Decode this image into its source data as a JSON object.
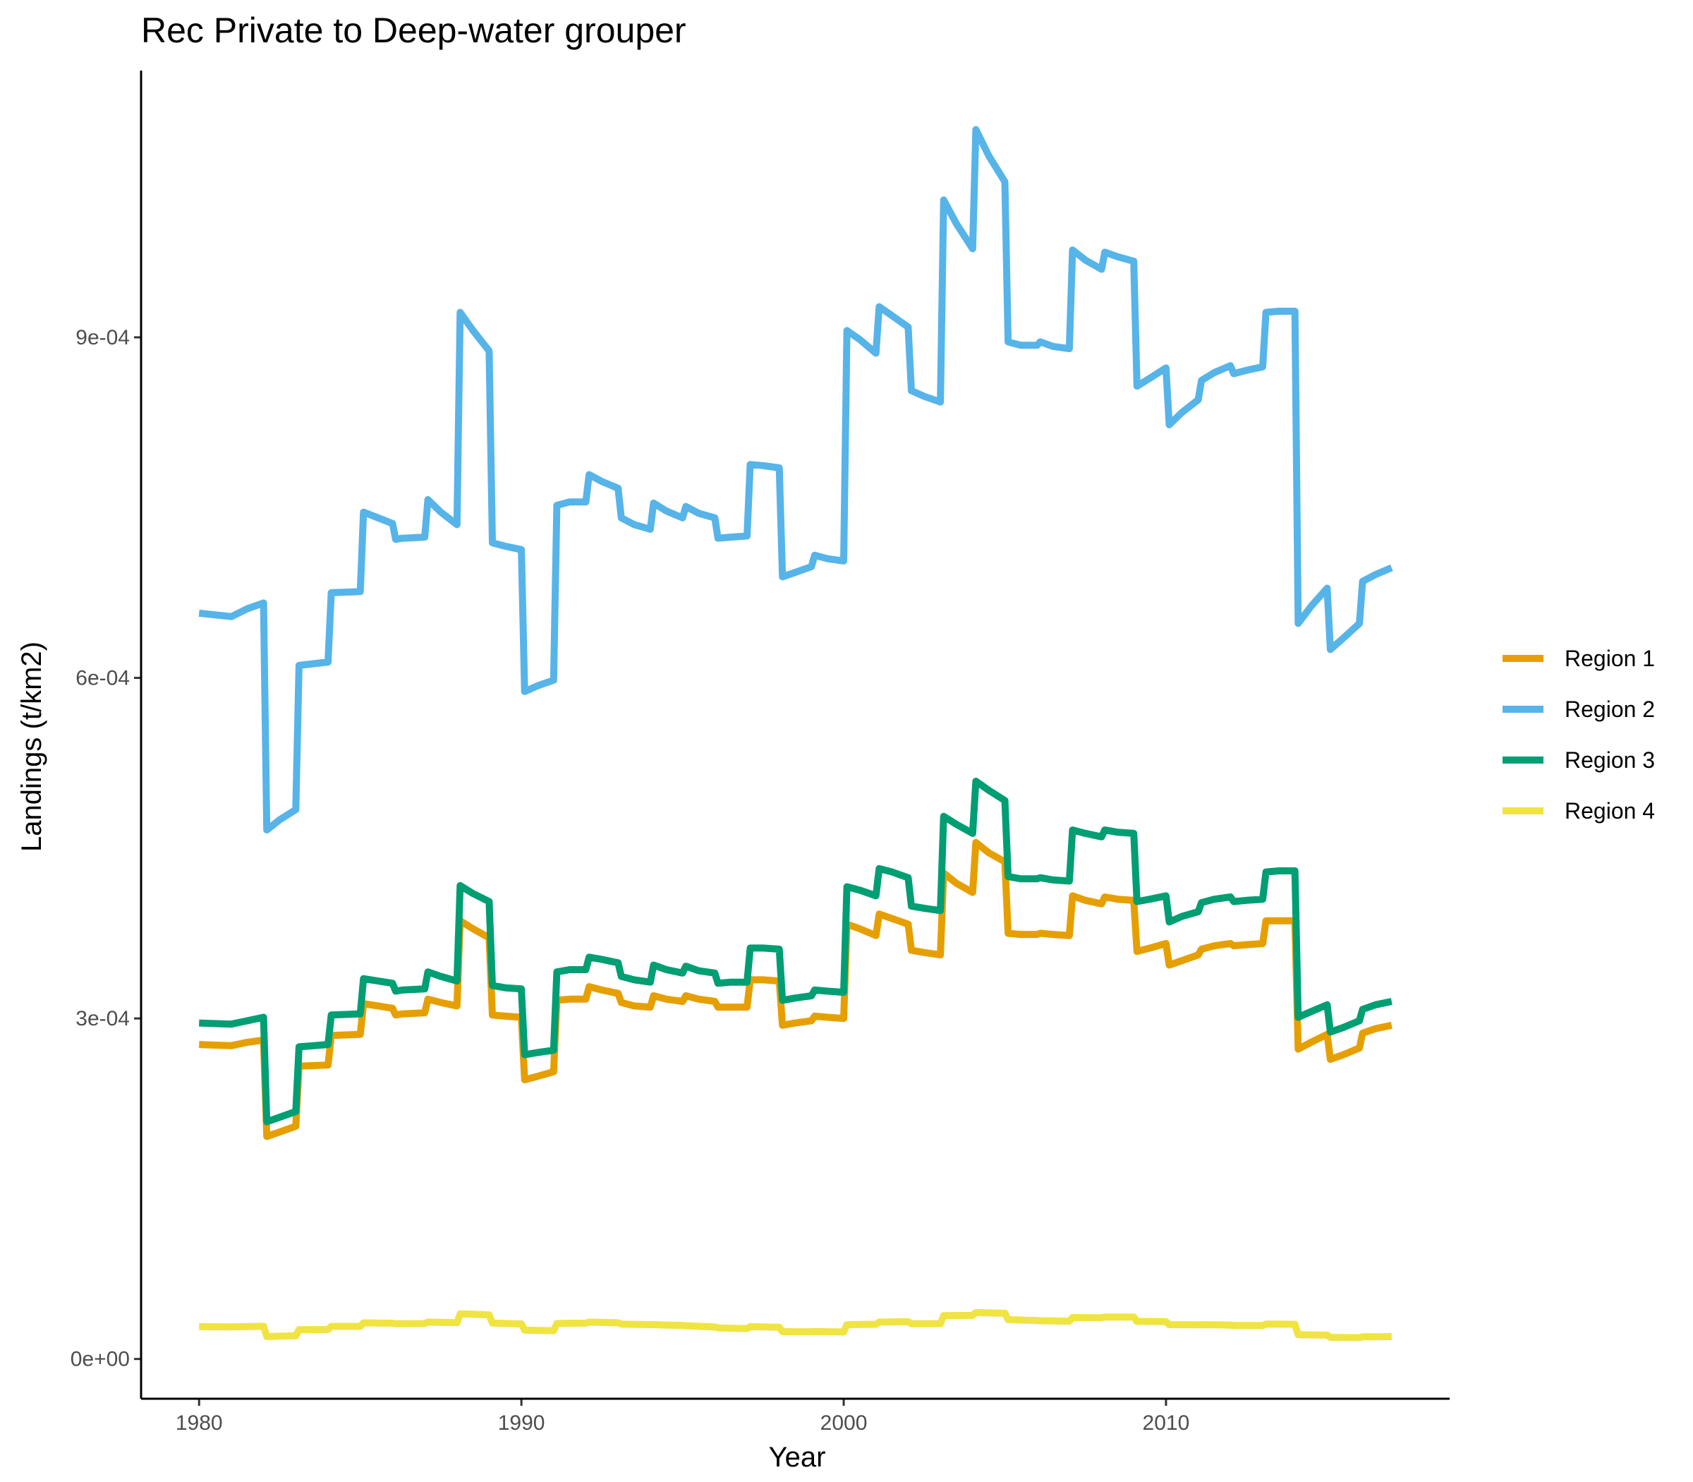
{
  "chart_data": {
    "type": "line",
    "title": "Rec Private to Deep-water grouper",
    "xlabel": "Year",
    "ylabel": "Landings (t/km2)",
    "xlim": [
      1978.2,
      2018.8
    ],
    "ylim": [
      -3.5e-05,
      0.001135
    ],
    "x_ticks": [
      1980,
      1990,
      2000,
      2010
    ],
    "x_tick_labels": [
      "1980",
      "1990",
      "2000",
      "2010"
    ],
    "y_ticks": [
      0,
      0.0003,
      0.0006,
      0.0009
    ],
    "y_tick_labels": [
      "0e+00",
      "3e-04",
      "6e-04",
      "9e-04"
    ],
    "legend_position": "right",
    "x": [
      1980.0,
      1981.0,
      1981.5,
      1982.0,
      1982.1,
      1982.5,
      1983.0,
      1983.1,
      1984.0,
      1984.1,
      1985.0,
      1985.1,
      1986.0,
      1986.1,
      1986.3,
      1987.0,
      1987.1,
      1987.5,
      1988.0,
      1988.1,
      1988.5,
      1989.0,
      1989.1,
      1989.5,
      1990.0,
      1990.1,
      1990.5,
      1991.0,
      1991.1,
      1991.5,
      1992.0,
      1992.1,
      1992.5,
      1993.0,
      1993.1,
      1993.5,
      1994.0,
      1994.1,
      1994.5,
      1995.0,
      1995.1,
      1995.5,
      1996.0,
      1996.1,
      1996.5,
      1997.0,
      1997.1,
      1997.5,
      1998.0,
      1998.1,
      1998.5,
      1999.0,
      1999.1,
      1999.5,
      2000.0,
      2000.1,
      2000.5,
      2001.0,
      2001.1,
      2001.5,
      2002.0,
      2002.1,
      2002.5,
      2003.0,
      2003.1,
      2003.5,
      2004.0,
      2004.1,
      2004.5,
      2005.0,
      2005.1,
      2005.5,
      2006.0,
      2006.1,
      2006.5,
      2007.0,
      2007.1,
      2007.5,
      2008.0,
      2008.1,
      2008.5,
      2009.0,
      2009.1,
      2009.5,
      2010.0,
      2010.1,
      2010.5,
      2011.0,
      2011.1,
      2011.5,
      2012.0,
      2012.1,
      2012.5,
      2013.0,
      2013.1,
      2013.5,
      2014.0,
      2014.1,
      2014.5,
      2015.0,
      2015.1,
      2015.5,
      2016.0,
      2016.1,
      2016.5,
      2017.0
    ],
    "series": [
      {
        "name": "Region 1",
        "color": "#E69F00",
        "values": [
          0.000277,
          0.000276,
          0.000279,
          0.000281,
          0.000196,
          0.0002,
          0.000205,
          0.000258,
          0.000259,
          0.000285,
          0.000286,
          0.000313,
          0.000309,
          0.000303,
          0.000304,
          0.000305,
          0.000317,
          0.000314,
          0.000311,
          0.000386,
          0.000379,
          0.000371,
          0.000303,
          0.000302,
          0.000301,
          0.000246,
          0.000249,
          0.000253,
          0.000316,
          0.000317,
          0.000317,
          0.000328,
          0.000325,
          0.000322,
          0.000314,
          0.000311,
          0.00031,
          0.00032,
          0.000317,
          0.000315,
          0.00032,
          0.000317,
          0.000315,
          0.00031,
          0.00031,
          0.00031,
          0.000334,
          0.000334,
          0.000333,
          0.000294,
          0.000296,
          0.000298,
          0.000302,
          0.000301,
          0.0003,
          0.000383,
          0.000379,
          0.000373,
          0.000392,
          0.000388,
          0.000383,
          0.00036,
          0.000358,
          0.000356,
          0.000428,
          0.000419,
          0.000411,
          0.000455,
          0.000446,
          0.000438,
          0.000375,
          0.000374,
          0.000374,
          0.000375,
          0.000374,
          0.000373,
          0.000408,
          0.000404,
          0.000401,
          0.000407,
          0.000405,
          0.000404,
          0.000359,
          0.000362,
          0.000366,
          0.000347,
          0.000351,
          0.000356,
          0.000361,
          0.000364,
          0.000366,
          0.000364,
          0.000365,
          0.000366,
          0.000386,
          0.000386,
          0.000386,
          0.000273,
          0.000279,
          0.000286,
          0.000264,
          0.000268,
          0.000274,
          0.000287,
          0.000291,
          0.000294
        ]
      },
      {
        "name": "Region 2",
        "color": "#56B4E9",
        "values": [
          0.000657,
          0.000654,
          0.000661,
          0.000666,
          0.000466,
          0.000475,
          0.000484,
          0.000611,
          0.000614,
          0.000675,
          0.000676,
          0.000746,
          0.000736,
          0.000722,
          0.000723,
          0.000724,
          0.000757,
          0.000746,
          0.000735,
          0.000922,
          0.000906,
          0.000888,
          0.000719,
          0.000716,
          0.000713,
          0.000588,
          0.000593,
          0.000598,
          0.000752,
          0.000755,
          0.000755,
          0.000779,
          0.000773,
          0.000767,
          0.000741,
          0.000735,
          0.000731,
          0.000754,
          0.000747,
          0.000741,
          0.000751,
          0.000745,
          0.000741,
          0.000723,
          0.000724,
          0.000725,
          0.000788,
          0.000787,
          0.000785,
          0.000689,
          0.000693,
          0.000698,
          0.000708,
          0.000705,
          0.000703,
          0.000906,
          0.000898,
          0.000886,
          0.000927,
          0.000919,
          0.000909,
          0.000853,
          0.000848,
          0.000843,
          0.001021,
          0.001,
          0.000978,
          0.001083,
          0.00106,
          0.001037,
          0.000896,
          0.000893,
          0.000893,
          0.000896,
          0.000892,
          0.00089,
          0.000977,
          0.000968,
          0.00096,
          0.000975,
          0.000971,
          0.000967,
          0.000857,
          0.000864,
          0.000873,
          0.000823,
          0.000834,
          0.000845,
          0.000862,
          0.000869,
          0.000875,
          0.000868,
          0.000871,
          0.000874,
          0.000922,
          0.000923,
          0.000923,
          0.000648,
          0.000663,
          0.000679,
          0.000625,
          0.000635,
          0.000648,
          0.000685,
          0.000691,
          0.000697
        ]
      },
      {
        "name": "Region 3",
        "color": "#009E73",
        "values": [
          0.000296,
          0.000295,
          0.000298,
          0.000301,
          0.000209,
          0.000213,
          0.000218,
          0.000275,
          0.000277,
          0.000303,
          0.000304,
          0.000335,
          0.000331,
          0.000324,
          0.000325,
          0.000326,
          0.000341,
          0.000337,
          0.000333,
          0.000417,
          0.00041,
          0.000403,
          0.000329,
          0.000327,
          0.000326,
          0.000268,
          0.00027,
          0.000272,
          0.000341,
          0.000343,
          0.000343,
          0.000354,
          0.000352,
          0.000349,
          0.000337,
          0.000334,
          0.000332,
          0.000347,
          0.000343,
          0.00034,
          0.000346,
          0.000342,
          0.00034,
          0.000331,
          0.000332,
          0.000332,
          0.000362,
          0.000362,
          0.000361,
          0.000316,
          0.000318,
          0.00032,
          0.000325,
          0.000324,
          0.000323,
          0.000416,
          0.000413,
          0.000408,
          0.000432,
          0.000429,
          0.000424,
          0.000399,
          0.000397,
          0.000395,
          0.000478,
          0.000471,
          0.000463,
          0.000509,
          0.000501,
          0.000492,
          0.000425,
          0.000423,
          0.000423,
          0.000424,
          0.000422,
          0.000421,
          0.000466,
          0.000463,
          0.00046,
          0.000466,
          0.000464,
          0.000463,
          0.000403,
          0.000405,
          0.000408,
          0.000385,
          0.00039,
          0.000394,
          0.000402,
          0.000405,
          0.000407,
          0.000403,
          0.000404,
          0.000405,
          0.000429,
          0.00043,
          0.00043,
          0.000301,
          0.000306,
          0.000312,
          0.000288,
          0.000292,
          0.000298,
          0.000308,
          0.000312,
          0.000315
        ]
      },
      {
        "name": "Region 4",
        "color": "#F0E442",
        "values": [
          2.85e-05,
          2.82e-05,
          2.86e-05,
          2.88e-05,
          1.98e-05,
          2.01e-05,
          2.04e-05,
          2.58e-05,
          2.6e-05,
          2.87e-05,
          2.88e-05,
          3.18e-05,
          3.15e-05,
          3.1e-05,
          3.11e-05,
          3.12e-05,
          3.25e-05,
          3.23e-05,
          3.2e-05,
          3.97e-05,
          3.94e-05,
          3.88e-05,
          3.17e-05,
          3.13e-05,
          3.09e-05,
          2.55e-05,
          2.52e-05,
          2.49e-05,
          3.12e-05,
          3.15e-05,
          3.16e-05,
          3.25e-05,
          3.22e-05,
          3.19e-05,
          3.07e-05,
          3.05e-05,
          3.03e-05,
          3.03e-05,
          2.99e-05,
          2.95e-05,
          2.93e-05,
          2.88e-05,
          2.83e-05,
          2.74e-05,
          2.71e-05,
          2.68e-05,
          2.85e-05,
          2.82e-05,
          2.79e-05,
          2.41e-05,
          2.4e-05,
          2.4e-05,
          2.42e-05,
          2.4e-05,
          2.38e-05,
          3.02e-05,
          3.04e-05,
          3.06e-05,
          3.25e-05,
          3.27e-05,
          3.28e-05,
          3.11e-05,
          3.11e-05,
          3.1e-05,
          3.82e-05,
          3.83e-05,
          3.84e-05,
          4.09e-05,
          4.06e-05,
          4.03e-05,
          3.47e-05,
          3.43e-05,
          3.39e-05,
          3.37e-05,
          3.35e-05,
          3.33e-05,
          3.65e-05,
          3.64e-05,
          3.63e-05,
          3.7e-05,
          3.7e-05,
          3.7e-05,
          3.31e-05,
          3.3e-05,
          3.29e-05,
          3.03e-05,
          3.02e-05,
          3.01e-05,
          3.02e-05,
          3.01e-05,
          2.99e-05,
          2.96e-05,
          2.95e-05,
          2.94e-05,
          3.08e-05,
          3.07e-05,
          3.06e-05,
          2.14e-05,
          2.12e-05,
          2.1e-05,
          1.9e-05,
          1.89e-05,
          1.88e-05,
          1.95e-05,
          1.96e-05,
          1.97e-05
        ]
      }
    ]
  }
}
